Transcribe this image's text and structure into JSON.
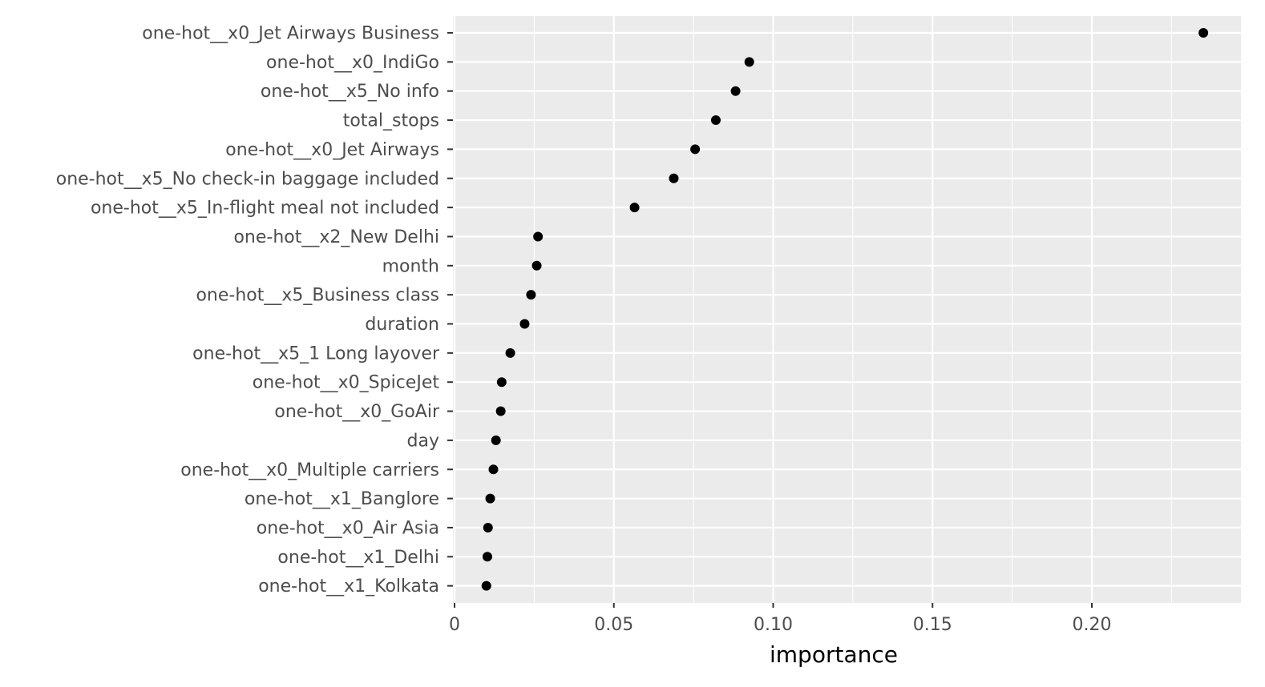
{
  "chart_data": {
    "type": "scatter",
    "title": "",
    "xlabel": "importance",
    "ylabel": "",
    "xlim": [
      0,
      0.245
    ],
    "xticks": [
      0,
      0.05,
      0.1,
      0.15,
      0.2
    ],
    "xtick_labels": [
      "0",
      "0.05",
      "0.10",
      "0.15",
      "0.20"
    ],
    "grid": true,
    "legend": "none",
    "colors": {
      "panel": "#ebebeb",
      "grid": "#ffffff",
      "point": "#000000",
      "tick_text": "#4d4d4d"
    },
    "categories": [
      "one-hot__x0_Jet Airways Business",
      "one-hot__x0_IndiGo",
      "one-hot__x5_No info",
      "total_stops",
      "one-hot__x0_Jet Airways",
      "one-hot__x5_No check-in baggage included",
      "one-hot__x5_In-flight meal not included",
      "one-hot__x2_New Delhi",
      "month",
      "one-hot__x5_Business class",
      "duration",
      "one-hot__x5_1 Long layover",
      "one-hot__x0_SpiceJet",
      "one-hot__x0_GoAir",
      "day",
      "one-hot__x0_Multiple carriers",
      "one-hot__x1_Banglore",
      "one-hot__x0_Air Asia",
      "one-hot__x1_Delhi",
      "one-hot__x1_Kolkata"
    ],
    "values": [
      0.235,
      0.0925,
      0.0882,
      0.082,
      0.0755,
      0.0688,
      0.0565,
      0.0262,
      0.0258,
      0.024,
      0.022,
      0.0175,
      0.0148,
      0.0145,
      0.013,
      0.0122,
      0.0112,
      0.0105,
      0.0103,
      0.01
    ]
  }
}
